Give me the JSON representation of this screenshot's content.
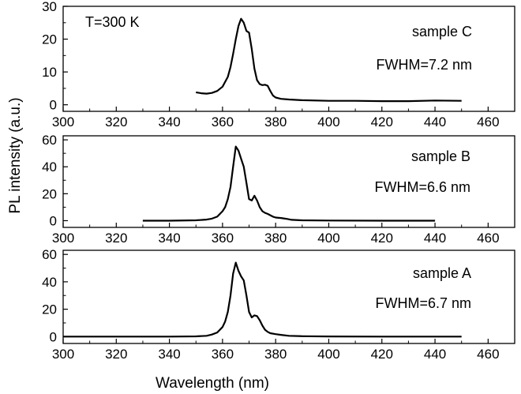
{
  "chart_data": {
    "type": "line",
    "xlabel": "Wavelength (nm)",
    "ylabel": "PL intensity (a.u.)",
    "shared_x_ticks": [
      300,
      320,
      340,
      360,
      380,
      400,
      420,
      440,
      460
    ],
    "panels": [
      {
        "id": "C",
        "xlim": [
          300,
          470
        ],
        "ylim": [
          -2,
          30
        ],
        "y_ticks": [
          0,
          10,
          20,
          30
        ],
        "annotations": [
          "T=300 K",
          "sample C",
          "FWHM=7.2 nm"
        ],
        "series": [
          {
            "name": "sample C",
            "x": [
              350,
              352,
              354,
              356,
              358,
              360,
              362,
              363,
              364,
              365,
              366,
              367,
              368,
              369,
              370,
              371,
              372,
              373,
              374,
              375,
              376,
              377,
              378,
              379,
              380,
              382,
              385,
              390,
              400,
              410,
              420,
              430,
              440,
              450
            ],
            "y": [
              3.8,
              3.5,
              3.4,
              3.6,
              4.2,
              5.5,
              8.5,
              11.5,
              15.5,
              20,
              24,
              26.2,
              25,
              22.5,
              22,
              17,
              11,
              7.5,
              6.3,
              6,
              6.1,
              5.8,
              4.2,
              2.8,
              2.2,
              1.8,
              1.6,
              1.4,
              1.2,
              1.2,
              1.1,
              1.1,
              1.3,
              1.2
            ]
          }
        ]
      },
      {
        "id": "B",
        "xlim": [
          300,
          470
        ],
        "ylim": [
          -5,
          63
        ],
        "y_ticks": [
          0,
          20,
          40,
          60
        ],
        "annotations": [
          "sample B",
          "FWHM=6.6 nm"
        ],
        "series": [
          {
            "name": "sample B",
            "x": [
              330,
              340,
              350,
              354,
              356,
              358,
              360,
              361,
              362,
              363,
              364,
              365,
              366,
              367,
              368,
              369,
              370,
              371,
              372,
              373,
              374,
              375,
              376,
              377,
              378,
              379,
              380,
              382,
              384,
              386,
              390,
              400,
              420,
              440
            ],
            "y": [
              0,
              0,
              0.3,
              0.8,
              1.5,
              3,
              7,
              10,
              16,
              25,
              40,
              55,
              52,
              46,
              40,
              28,
              16,
              15,
              18.5,
              15,
              10,
              7,
              5.8,
              5,
              4,
              3,
              2.3,
              2,
              1.4,
              0.6,
              0.3,
              0.1,
              0,
              0
            ]
          }
        ]
      },
      {
        "id": "A",
        "xlim": [
          300,
          470
        ],
        "ylim": [
          -5,
          63
        ],
        "y_ticks": [
          0,
          20,
          40,
          60
        ],
        "annotations": [
          "sample A",
          "FWHM=6.7 nm"
        ],
        "series": [
          {
            "name": "sample A",
            "x": [
              300,
              320,
              340,
              350,
              354,
              356,
              358,
              360,
              361,
              362,
              363,
              364,
              365,
              366,
              367,
              368,
              369,
              370,
              371,
              372,
              373,
              374,
              375,
              376,
              377,
              378,
              380,
              382,
              385,
              390,
              400,
              420,
              440,
              450
            ],
            "y": [
              0,
              0,
              0,
              0.2,
              0.6,
              1.5,
              3,
              7,
              11,
              18,
              30,
              46,
              54,
              48,
              44,
              41,
              30,
              18,
              14,
              15.5,
              15,
              12,
              8,
              5,
              3.5,
              2.5,
              1.8,
              1.3,
              0.6,
              0.3,
              0.1,
              0,
              0,
              0
            ]
          }
        ]
      }
    ]
  }
}
